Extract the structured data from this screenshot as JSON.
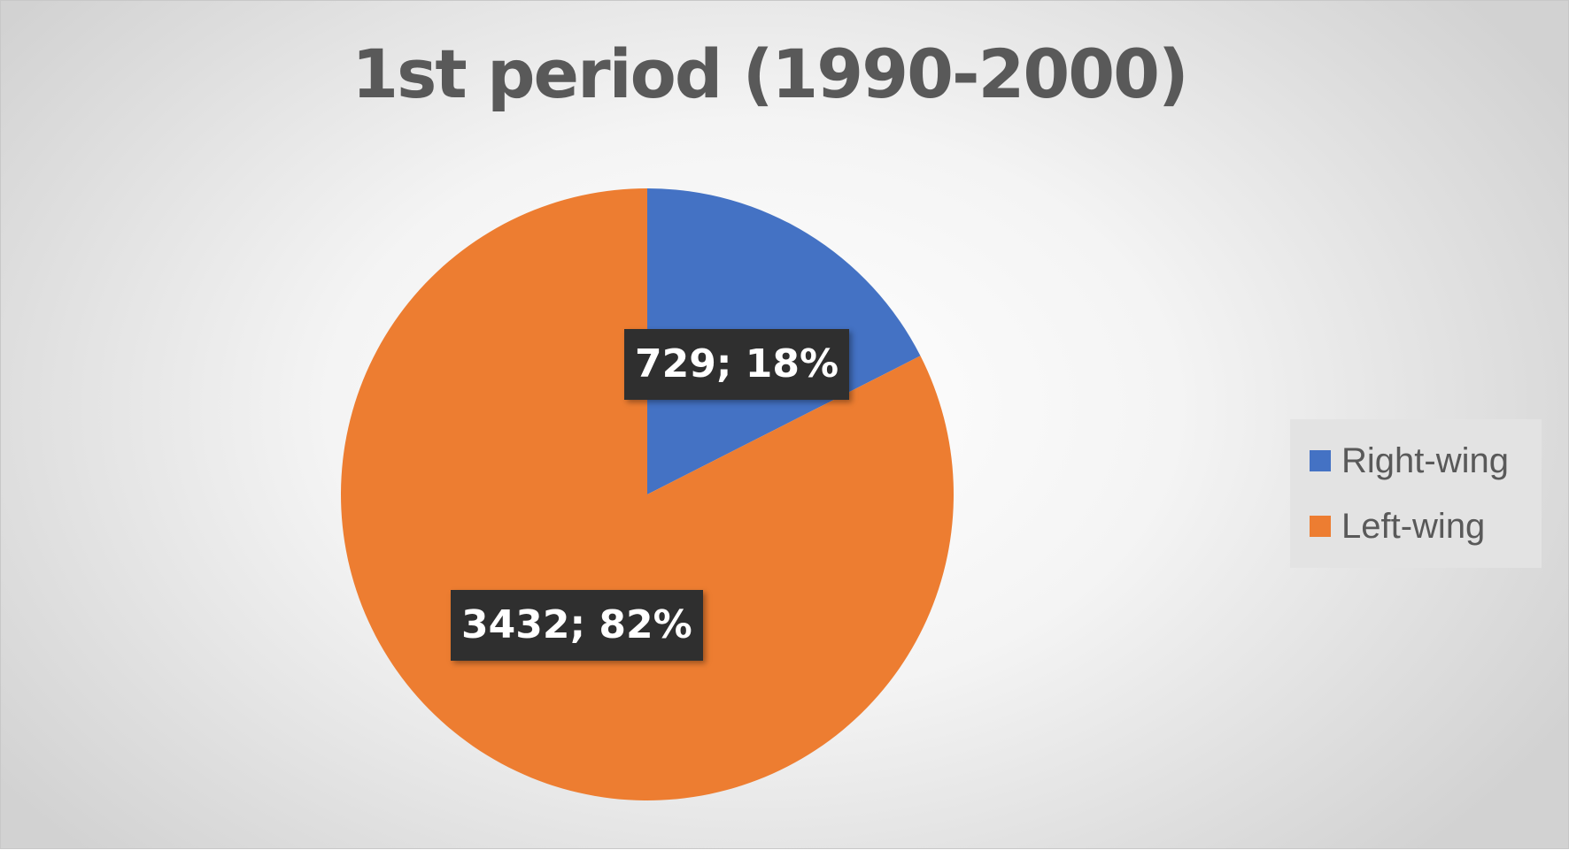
{
  "chart_data": {
    "type": "pie",
    "title": "1st period (1990-2000)",
    "categories": [
      "Right-wing",
      "Left-wing"
    ],
    "values": [
      729,
      3432
    ],
    "percentages": [
      18,
      82
    ],
    "labels": [
      "729; 18%",
      "3432; 82%"
    ],
    "colors": [
      "#4472c4",
      "#ed7d31"
    ],
    "legend": "right"
  }
}
